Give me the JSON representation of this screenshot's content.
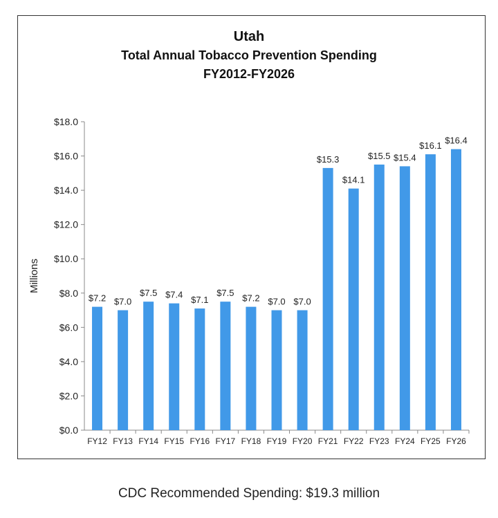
{
  "chart_data": {
    "type": "bar",
    "title": "Utah",
    "subtitle": "Total Annual Tobacco Prevention Spending",
    "subtitle2": "FY2012-FY2026",
    "xlabel": "",
    "ylabel": "Millions",
    "categories": [
      "FY12",
      "FY13",
      "FY14",
      "FY15",
      "FY16",
      "FY17",
      "FY18",
      "FY19",
      "FY20",
      "FY21",
      "FY22",
      "FY23",
      "FY24",
      "FY25",
      "FY26"
    ],
    "values": [
      7.2,
      7.0,
      7.5,
      7.4,
      7.1,
      7.5,
      7.2,
      7.0,
      7.0,
      15.3,
      14.1,
      15.5,
      15.4,
      16.1,
      16.4
    ],
    "data_labels": [
      "$7.2",
      "$7.0",
      "$7.5",
      "$7.4",
      "$7.1",
      "$7.5",
      "$7.2",
      "$7.0",
      "$7.0",
      "$15.3",
      "$14.1",
      "$15.5",
      "$15.4",
      "$16.1",
      "$16.4"
    ],
    "ylim": [
      0,
      18
    ],
    "yticks": [
      "$0.0",
      "$2.0",
      "$4.0",
      "$6.0",
      "$8.0",
      "$10.0",
      "$12.0",
      "$14.0",
      "$16.0",
      "$18.0"
    ],
    "grid": false,
    "bar_color": "#4199E8"
  },
  "footnote": "CDC Recommended Spending: $19.3 million"
}
